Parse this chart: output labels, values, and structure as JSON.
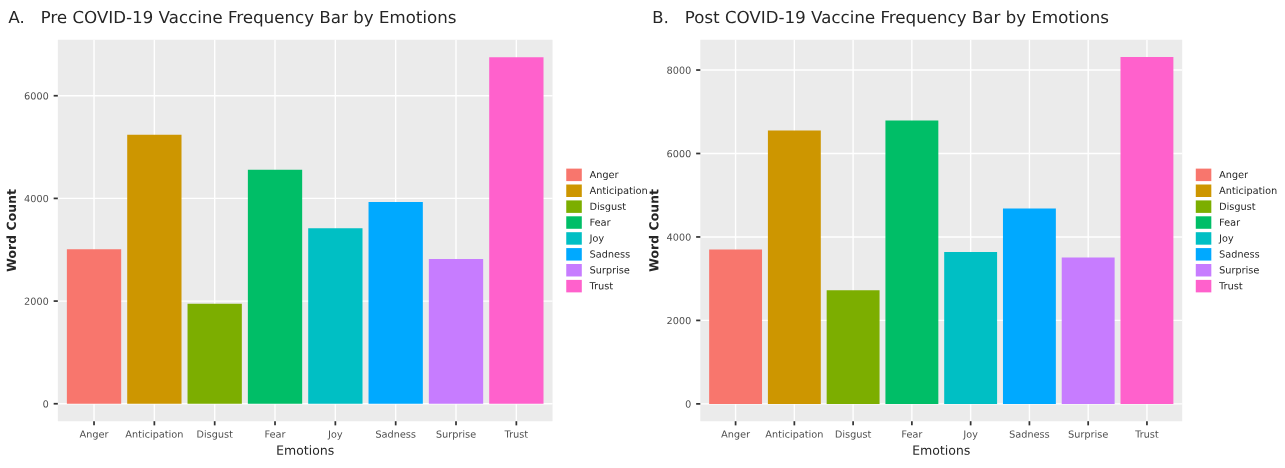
{
  "chart_data": [
    {
      "type": "bar",
      "title": "A.   Pre COVID-19 Vaccine Frequency Bar by Emotions",
      "xlabel": "Emotions",
      "ylabel": "Word Count",
      "categories": [
        "Anger",
        "Anticipation",
        "Disgust",
        "Fear",
        "Joy",
        "Sadness",
        "Surprise",
        "Trust"
      ],
      "series": [
        {
          "name": "Anger",
          "color": "#F8766D",
          "values": [
            3010,
            null,
            null,
            null,
            null,
            null,
            null,
            null
          ]
        },
        {
          "name": "Anticipation",
          "color": "#CD9600",
          "values": [
            null,
            5240,
            null,
            null,
            null,
            null,
            null,
            null
          ]
        },
        {
          "name": "Disgust",
          "color": "#7CAE00",
          "values": [
            null,
            null,
            1950,
            null,
            null,
            null,
            null,
            null
          ]
        },
        {
          "name": "Fear",
          "color": "#00BE67",
          "values": [
            null,
            null,
            null,
            4560,
            null,
            null,
            null,
            null
          ]
        },
        {
          "name": "Joy",
          "color": "#00BFC4",
          "values": [
            null,
            null,
            null,
            null,
            3420,
            null,
            null,
            null
          ]
        },
        {
          "name": "Sadness",
          "color": "#00A9FF",
          "values": [
            null,
            null,
            null,
            null,
            null,
            3930,
            null,
            null
          ]
        },
        {
          "name": "Surprise",
          "color": "#C77CFF",
          "values": [
            null,
            null,
            null,
            null,
            null,
            null,
            2820,
            null
          ]
        },
        {
          "name": "Trust",
          "color": "#FF61CC",
          "values": [
            null,
            null,
            null,
            null,
            null,
            null,
            null,
            6750
          ]
        }
      ],
      "ylim": [
        -340,
        7090
      ],
      "yticks": [
        0,
        2000,
        4000,
        6000
      ],
      "grid": true,
      "legend": "right"
    },
    {
      "type": "bar",
      "title": "B.   Post COVID-19 Vaccine Frequency Bar by Emotions",
      "xlabel": "Emotions",
      "ylabel": "Word Count",
      "categories": [
        "Anger",
        "Anticipation",
        "Disgust",
        "Fear",
        "Joy",
        "Sadness",
        "Surprise",
        "Trust"
      ],
      "series": [
        {
          "name": "Anger",
          "color": "#F8766D",
          "values": [
            3700,
            null,
            null,
            null,
            null,
            null,
            null,
            null
          ]
        },
        {
          "name": "Anticipation",
          "color": "#CD9600",
          "values": [
            null,
            6550,
            null,
            null,
            null,
            null,
            null,
            null
          ]
        },
        {
          "name": "Disgust",
          "color": "#7CAE00",
          "values": [
            null,
            null,
            2720,
            null,
            null,
            null,
            null,
            null
          ]
        },
        {
          "name": "Fear",
          "color": "#00BE67",
          "values": [
            null,
            null,
            null,
            6790,
            null,
            null,
            null,
            null
          ]
        },
        {
          "name": "Joy",
          "color": "#00BFC4",
          "values": [
            null,
            null,
            null,
            null,
            3640,
            null,
            null,
            null
          ]
        },
        {
          "name": "Sadness",
          "color": "#00A9FF",
          "values": [
            null,
            null,
            null,
            null,
            null,
            4680,
            null,
            null
          ]
        },
        {
          "name": "Surprise",
          "color": "#C77CFF",
          "values": [
            null,
            null,
            null,
            null,
            null,
            null,
            3510,
            null
          ]
        },
        {
          "name": "Trust",
          "color": "#FF61CC",
          "values": [
            null,
            null,
            null,
            null,
            null,
            null,
            null,
            8310
          ]
        }
      ],
      "ylim": [
        -415,
        8725
      ],
      "yticks": [
        0,
        2000,
        4000,
        6000,
        8000
      ],
      "grid": true,
      "legend": "right"
    }
  ]
}
